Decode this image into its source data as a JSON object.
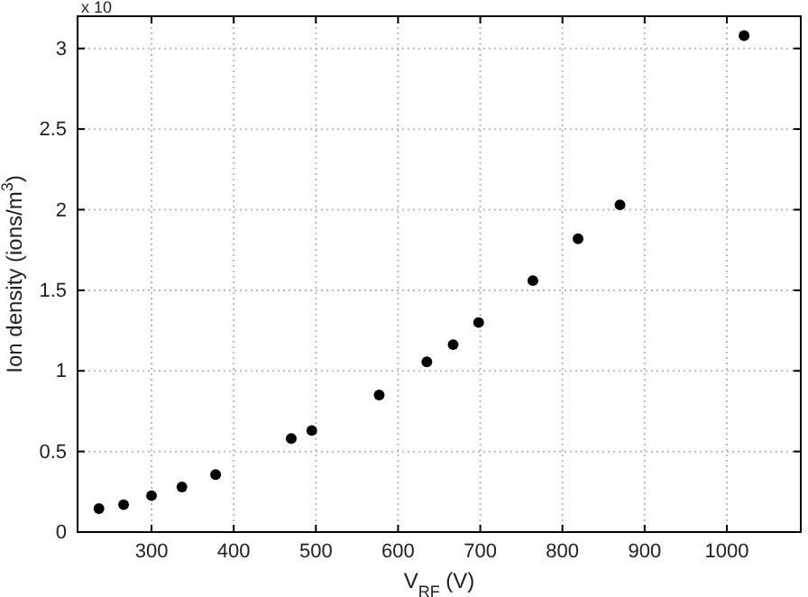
{
  "chart_data": {
    "type": "scatter",
    "xlabel": "V$_{RF}$ (V)",
    "ylabel": "Ion density (ions/m$^{3}$)",
    "annotations": [
      "x 10"
    ],
    "x": [
      236,
      266,
      300,
      337,
      378,
      470,
      495,
      577,
      635,
      667,
      698,
      764,
      819,
      870,
      1021
    ],
    "values": [
      0.145,
      0.17,
      0.226,
      0.28,
      0.357,
      0.58,
      0.63,
      0.85,
      1.056,
      1.163,
      1.3,
      1.56,
      1.82,
      2.03,
      3.08
    ],
    "color": "#000000",
    "marker": "circle",
    "xlim": [
      210,
      1090
    ],
    "xticks": [
      300,
      400,
      500,
      600,
      700,
      800,
      900,
      1000
    ],
    "ylim": [
      0,
      3.2
    ],
    "yticks": [
      0,
      0.5,
      1,
      1.5,
      2,
      2.5,
      3
    ],
    "grid": true
  }
}
